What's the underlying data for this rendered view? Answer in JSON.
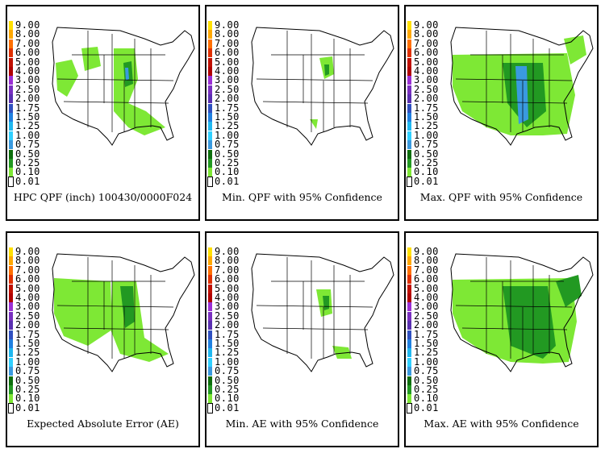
{
  "legend": {
    "levels": [
      "9.00",
      "8.00",
      "7.00",
      "6.00",
      "5.00",
      "4.00",
      "3.00",
      "2.50",
      "2.00",
      "1.75",
      "1.50",
      "1.25",
      "1.00",
      "0.75",
      "0.50",
      "0.25",
      "0.10",
      "0.01"
    ],
    "colors": [
      "#ffe000",
      "#ffa800",
      "#ff7000",
      "#e03000",
      "#c01000",
      "#b00000",
      "#9b2fd4",
      "#7a2fc0",
      "#5a30b0",
      "#3050c0",
      "#2080e0",
      "#20b8f0",
      "#30d0ff",
      "#3a9adf",
      "#0d6e0d",
      "#229922",
      "#7ee835",
      "#ffffff"
    ]
  },
  "panels": [
    {
      "caption": "HPC QPF (inch) 100430/0000F024"
    },
    {
      "caption": "Min. QPF with 95% Confidence"
    },
    {
      "caption": "Max. QPF with 95% Confidence"
    },
    {
      "caption": "Expected Absolute Error (AE)"
    },
    {
      "caption": "Min. AE with 95% Confidence"
    },
    {
      "caption": "Max. AE with 95% Confidence"
    }
  ]
}
